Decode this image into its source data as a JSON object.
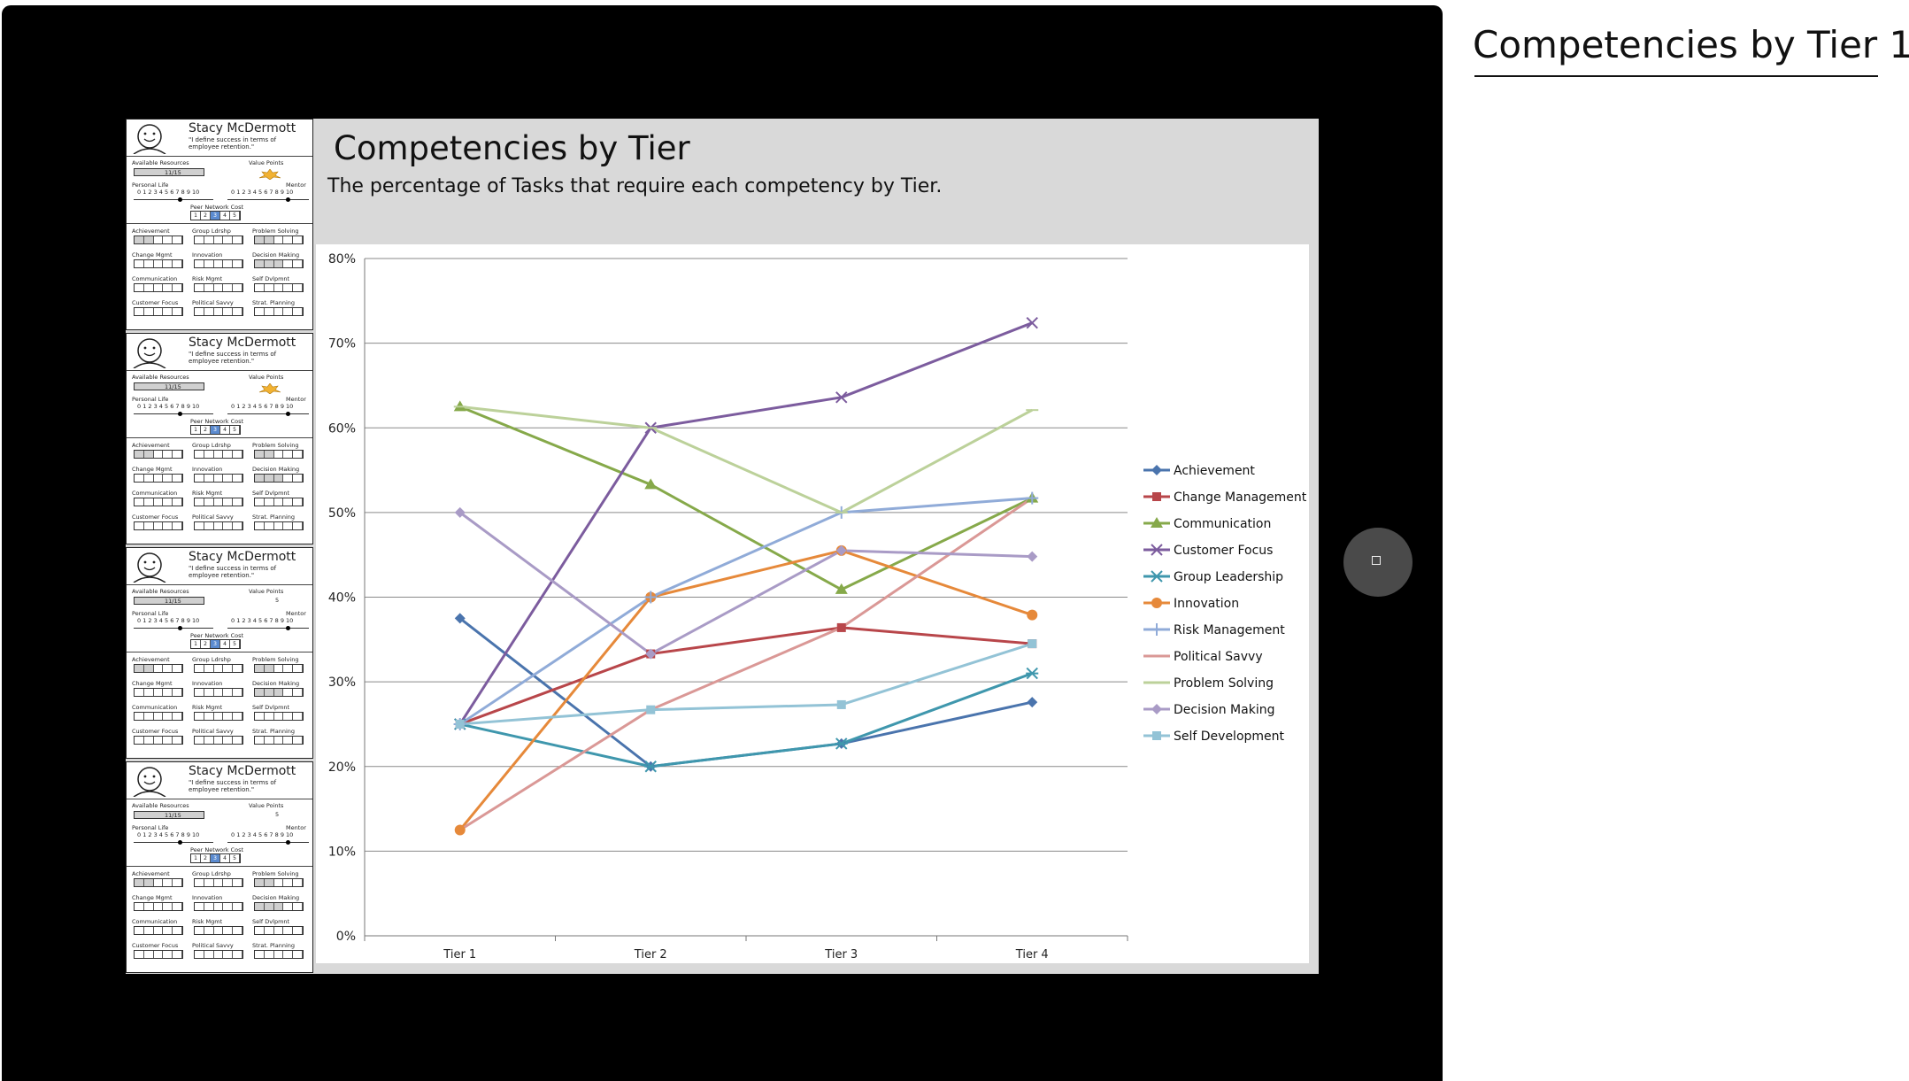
{
  "page_title": "Competencies by Tier 1",
  "slide": {
    "title": "Competencies by Tier",
    "subtitle": "The percentage of Tasks that require each competency by Tier."
  },
  "card": {
    "name": "Stacy McDermott",
    "quote": "\"I define success in terms of employee retention.\"",
    "available_resources": "Available Resources",
    "resource_value": "11/15",
    "value_points": "Value Points",
    "personal_life": "Personal Life",
    "mentor": "Mentor",
    "scale": "0 1 2 3 4 5 6 7 8 9 10",
    "peer_network_cost": "Peer Network Cost",
    "network_cells": [
      "1",
      "2",
      "3",
      "4",
      "5"
    ],
    "skills": [
      "Achievement",
      "Group Ldrshp",
      "Problem Solving",
      "Change Mgmt",
      "Innovation",
      "Decision Making",
      "Communication",
      "Risk Mgmt",
      "Self Dvlpmnt",
      "Customer Focus",
      "Political Savvy",
      "Strat. Planning"
    ]
  },
  "cards": [
    {
      "value_points": "",
      "starred": true
    },
    {
      "value_points": "",
      "starred": true
    },
    {
      "value_points": "5",
      "starred": false
    },
    {
      "value_points": "5",
      "starred": false
    }
  ],
  "chart_data": {
    "type": "line",
    "title": "",
    "xlabel": "",
    "ylabel": "",
    "categories": [
      "Tier 1",
      "Tier 2",
      "Tier 3",
      "Tier 4"
    ],
    "ylim": [
      0,
      80
    ],
    "yticks": [
      "0%",
      "10%",
      "20%",
      "30%",
      "40%",
      "50%",
      "60%",
      "70%",
      "80%"
    ],
    "grid": true,
    "legend_position": "right",
    "series": [
      {
        "name": "Achievement",
        "values": [
          37.5,
          20.0,
          22.7,
          27.6
        ],
        "color": "#4a74ad",
        "marker": "diamond"
      },
      {
        "name": "Change Management",
        "values": [
          25.0,
          33.3,
          36.4,
          34.5
        ],
        "color": "#b8464a",
        "marker": "square"
      },
      {
        "name": "Communication",
        "values": [
          62.5,
          53.3,
          40.9,
          51.7
        ],
        "color": "#86a94a",
        "marker": "triangle"
      },
      {
        "name": "Customer Focus",
        "values": [
          25.0,
          60.0,
          63.6,
          72.4
        ],
        "color": "#7c5c9e",
        "marker": "x"
      },
      {
        "name": "Group Leadership",
        "values": [
          25.0,
          20.0,
          22.7,
          31.0
        ],
        "color": "#3f97ad",
        "marker": "star"
      },
      {
        "name": "Innovation",
        "values": [
          12.5,
          40.0,
          45.5,
          37.9
        ],
        "color": "#e6893a",
        "marker": "circle"
      },
      {
        "name": "Risk Management",
        "values": [
          25.0,
          40.0,
          50.0,
          51.7
        ],
        "color": "#90abd8",
        "marker": "plus"
      },
      {
        "name": "Political Savvy",
        "values": [
          12.5,
          26.7,
          36.4,
          51.7
        ],
        "color": "#da9896",
        "marker": "none"
      },
      {
        "name": "Problem Solving",
        "values": [
          62.5,
          60.0,
          50.0,
          62.1
        ],
        "color": "#bcd19a",
        "marker": "dash"
      },
      {
        "name": "Decision Making",
        "values": [
          50.0,
          33.3,
          45.5,
          44.8
        ],
        "color": "#a99bc6",
        "marker": "diamond"
      },
      {
        "name": "Self Development",
        "values": [
          25.0,
          26.7,
          27.3,
          34.5
        ],
        "color": "#93c3d6",
        "marker": "square"
      }
    ]
  },
  "nav_button": {
    "icon": "square-icon"
  }
}
